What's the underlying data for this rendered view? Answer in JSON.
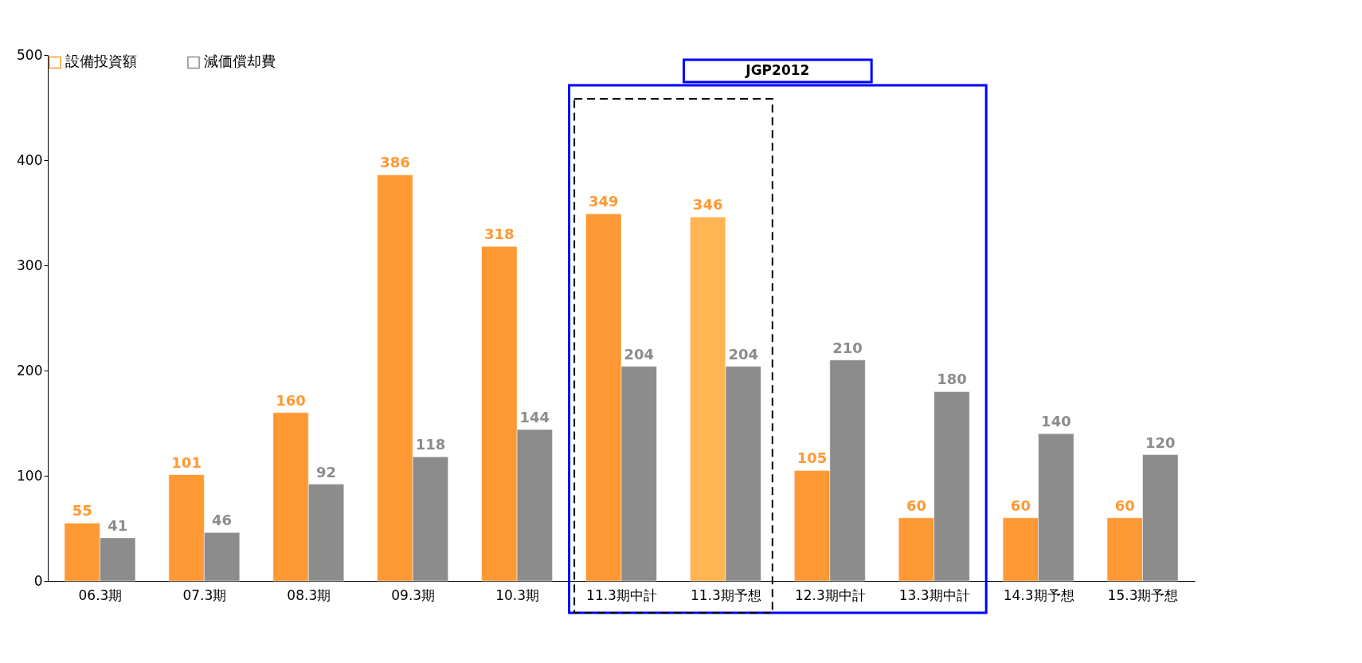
{
  "chart_data": {
    "type": "bar",
    "categories": [
      "06.3期",
      "07.3期",
      "08.3期",
      "09.3期",
      "10.3期",
      "11.3期中計",
      "11.3期予想",
      "12.3期中計",
      "13.3期中計",
      "14.3期予想",
      "15.3期予想"
    ],
    "series": [
      {
        "name": "設備投資額",
        "color": "#ff9933",
        "colors": [
          "#ff9933",
          "#ff9933",
          "#ff9933",
          "#ff9933",
          "#ff9933",
          "#ff9933",
          "#ffb552",
          "#ff9933",
          "#ff9933",
          "#ff9933",
          "#ff9933"
        ],
        "values": [
          55,
          101,
          160,
          386,
          318,
          349,
          346,
          105,
          60,
          60,
          60
        ]
      },
      {
        "name": "減価償却費",
        "color": "#8c8c8c",
        "values": [
          41,
          46,
          92,
          118,
          144,
          204,
          204,
          210,
          180,
          140,
          120
        ]
      }
    ],
    "ylim": [
      0,
      500
    ],
    "yticks": [
      0,
      100,
      200,
      300,
      400,
      500
    ],
    "data_labels": true,
    "grid": false,
    "legend": "top left",
    "annotations": [
      "JGP2012"
    ]
  }
}
